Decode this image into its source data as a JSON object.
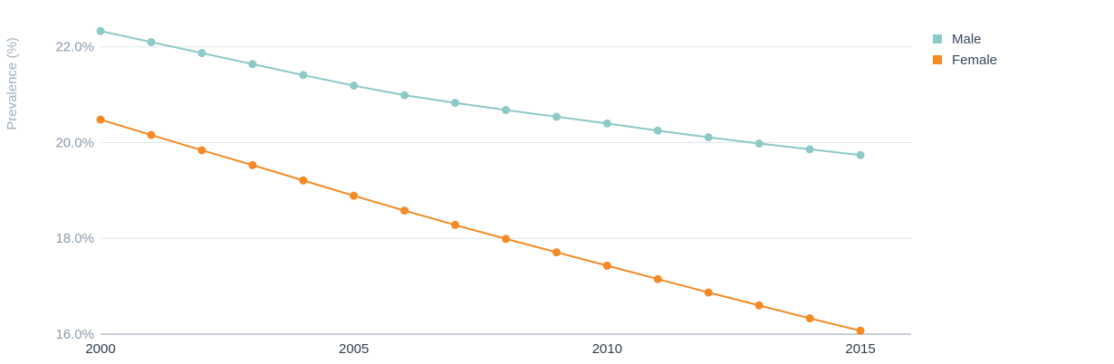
{
  "chart_data": {
    "type": "line",
    "title": "",
    "xlabel": "",
    "ylabel": "Prevalence (%)",
    "x": [
      2000,
      2001,
      2002,
      2003,
      2004,
      2005,
      2006,
      2007,
      2008,
      2009,
      2010,
      2011,
      2012,
      2013,
      2014,
      2015
    ],
    "x_ticks": [
      2000,
      2005,
      2010,
      2015
    ],
    "x_tick_labels": [
      "2000",
      "2005",
      "2010",
      "2015"
    ],
    "xlim": [
      2000,
      2016
    ],
    "ylim": [
      16.0,
      22.6
    ],
    "y_ticks": [
      16.0,
      18.0,
      20.0,
      22.0
    ],
    "y_tick_labels": [
      "16.0%",
      "18.0%",
      "20.0%",
      "22.0%"
    ],
    "grid": true,
    "legend_position": "top-right",
    "series": [
      {
        "name": "Male",
        "color": "#8cc9c7",
        "values": [
          22.33,
          22.1,
          21.87,
          21.64,
          21.41,
          21.19,
          20.99,
          20.83,
          20.68,
          20.54,
          20.4,
          20.25,
          20.11,
          19.98,
          19.86,
          19.74
        ]
      },
      {
        "name": "Female",
        "color": "#f38a24",
        "values": [
          20.48,
          20.16,
          19.84,
          19.53,
          19.21,
          18.89,
          18.58,
          18.28,
          17.99,
          17.71,
          17.43,
          17.15,
          16.87,
          16.6,
          16.33,
          16.07
        ]
      }
    ]
  }
}
